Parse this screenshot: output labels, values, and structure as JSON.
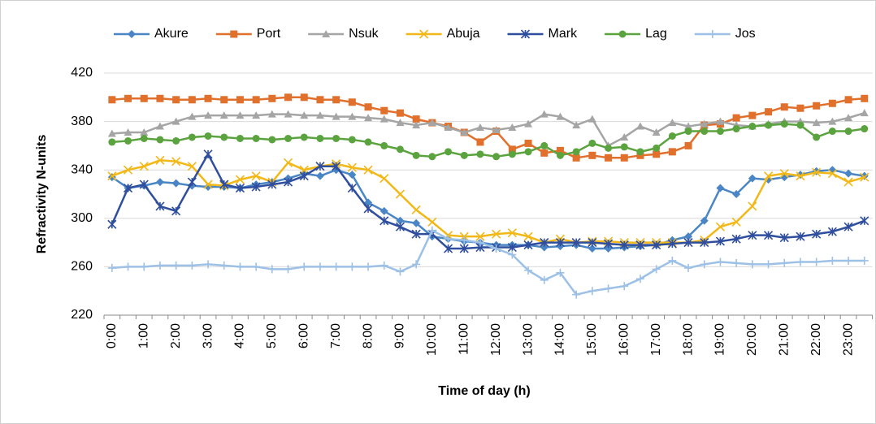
{
  "chart_data": {
    "type": "line",
    "x_label": "Time of day (h)",
    "y_label": "Refractivity N-units",
    "categories": [
      "0:00",
      null,
      "1:00",
      null,
      "2:00",
      null,
      "3:00",
      null,
      "4:00",
      null,
      "5:00",
      null,
      "6:00",
      null,
      "7:00",
      null,
      "8:00",
      null,
      "9:00",
      null,
      "10:00",
      null,
      "11:00",
      null,
      "12:00",
      null,
      "13:00",
      null,
      "14:00",
      null,
      "15:00",
      null,
      "16:00",
      null,
      "17:00",
      null,
      "18:00",
      null,
      "19:00",
      null,
      "20:00",
      null,
      "21:00",
      null,
      "22:00",
      null,
      "23:00",
      null
    ],
    "ylim": [
      220,
      420
    ],
    "yticks": [
      220,
      260,
      300,
      340,
      380,
      420
    ],
    "grid": true,
    "legend": "top",
    "series": [
      {
        "name": "Akure",
        "color": "#4a86c5",
        "marker": "diamond",
        "values": [
          334,
          325,
          327,
          330,
          329,
          327,
          326,
          326,
          325,
          328,
          330,
          333,
          337,
          335,
          340,
          336,
          313,
          306,
          298,
          296,
          285,
          283,
          281,
          280,
          278,
          278,
          278,
          276,
          277,
          278,
          275,
          275,
          276,
          277,
          278,
          282,
          285,
          298,
          325,
          320,
          333,
          332,
          334,
          336,
          339,
          340,
          337,
          335
        ]
      },
      {
        "name": "Port",
        "color": "#e0702c",
        "marker": "square",
        "values": [
          398,
          399,
          399,
          399,
          398,
          398,
          399,
          398,
          398,
          398,
          399,
          400,
          400,
          398,
          398,
          396,
          392,
          389,
          387,
          382,
          379,
          376,
          371,
          363,
          372,
          357,
          362,
          354,
          356,
          350,
          352,
          350,
          350,
          352,
          353,
          355,
          360,
          377,
          378,
          383,
          385,
          388,
          392,
          391,
          393,
          395,
          398,
          399
        ]
      },
      {
        "name": "Nsuk",
        "color": "#a5a5a5",
        "marker": "triangle",
        "values": [
          370,
          371,
          371,
          376,
          380,
          384,
          385,
          385,
          385,
          385,
          386,
          386,
          385,
          385,
          384,
          384,
          383,
          382,
          379,
          377,
          379,
          375,
          371,
          375,
          373,
          375,
          378,
          386,
          384,
          377,
          382,
          360,
          367,
          376,
          371,
          379,
          376,
          378,
          380,
          377,
          376,
          378,
          380,
          380,
          379,
          380,
          383,
          387
        ]
      },
      {
        "name": "Abuja",
        "color": "#f2b818",
        "marker": "x",
        "values": [
          335,
          340,
          343,
          348,
          347,
          343,
          328,
          327,
          332,
          335,
          330,
          346,
          340,
          343,
          345,
          342,
          340,
          333,
          320,
          307,
          297,
          286,
          285,
          285,
          287,
          288,
          285,
          280,
          283,
          280,
          281,
          281,
          280,
          280,
          280,
          280,
          280,
          282,
          293,
          297,
          310,
          335,
          337,
          335,
          338,
          337,
          330,
          334
        ]
      },
      {
        "name": "Mark",
        "color": "#2f4e9e",
        "marker": "star",
        "values": [
          295,
          325,
          328,
          310,
          306,
          330,
          353,
          328,
          325,
          326,
          328,
          330,
          335,
          343,
          343,
          325,
          308,
          298,
          293,
          287,
          287,
          275,
          275,
          276,
          276,
          276,
          278,
          280,
          280,
          280,
          280,
          279,
          278,
          278,
          278,
          279,
          280,
          280,
          281,
          283,
          286,
          286,
          284,
          285,
          287,
          289,
          293,
          298
        ]
      },
      {
        "name": "Lag",
        "color": "#5aa33e",
        "marker": "circle",
        "values": [
          363,
          364,
          366,
          365,
          364,
          367,
          368,
          367,
          366,
          366,
          365,
          366,
          367,
          366,
          366,
          365,
          363,
          360,
          357,
          352,
          351,
          355,
          352,
          353,
          351,
          353,
          355,
          360,
          352,
          355,
          362,
          358,
          359,
          355,
          358,
          368,
          372,
          372,
          372,
          374,
          376,
          377,
          378,
          377,
          367,
          372,
          372,
          374
        ]
      },
      {
        "name": "Jos",
        "color": "#9cc0e6",
        "marker": "plus",
        "values": [
          259,
          260,
          260,
          261,
          261,
          261,
          262,
          261,
          260,
          260,
          258,
          258,
          260,
          260,
          260,
          260,
          260,
          261,
          256,
          262,
          290,
          283,
          282,
          280,
          275,
          270,
          257,
          249,
          255,
          237,
          240,
          242,
          244,
          250,
          258,
          265,
          259,
          262,
          264,
          263,
          262,
          262,
          263,
          264,
          264,
          265,
          265,
          265
        ]
      }
    ]
  }
}
